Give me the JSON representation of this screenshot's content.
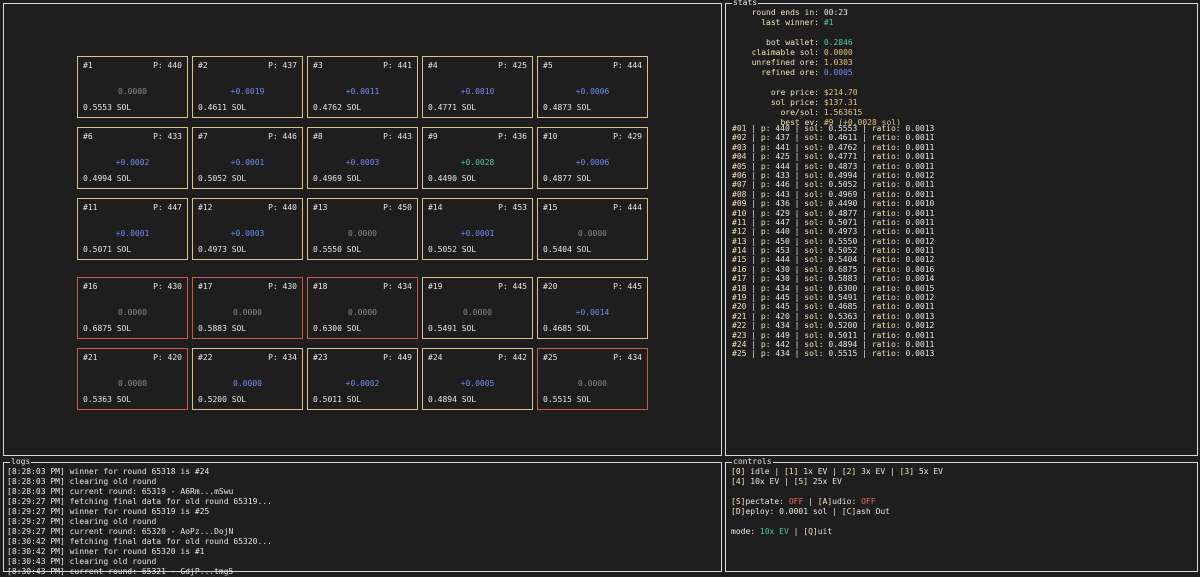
{
  "panels": {
    "stats_title": "stats",
    "logs_title": "logs",
    "controls_title": "controls"
  },
  "grid": [
    {
      "id": "#1",
      "players": "P: 440",
      "ev": "0.0000",
      "sol": "0.5553 SOL",
      "border": "gold",
      "ev_style": "zero"
    },
    {
      "id": "#2",
      "players": "P: 437",
      "ev": "+0.0019",
      "sol": "0.4611 SOL",
      "border": "gold",
      "ev_style": "pos"
    },
    {
      "id": "#3",
      "players": "P: 441",
      "ev": "+0.0011",
      "sol": "0.4762 SOL",
      "border": "gold",
      "ev_style": "pos"
    },
    {
      "id": "#4",
      "players": "P: 425",
      "ev": "+0.0010",
      "sol": "0.4771 SOL",
      "border": "gold",
      "ev_style": "pos"
    },
    {
      "id": "#5",
      "players": "P: 444",
      "ev": "+0.0006",
      "sol": "0.4873 SOL",
      "border": "gold",
      "ev_style": "pos"
    },
    {
      "id": "#6",
      "players": "P: 433",
      "ev": "+0.0002",
      "sol": "0.4994 SOL",
      "border": "gold",
      "ev_style": "pos"
    },
    {
      "id": "#7",
      "players": "P: 446",
      "ev": "+0.0001",
      "sol": "0.5052 SOL",
      "border": "gold",
      "ev_style": "pos"
    },
    {
      "id": "#8",
      "players": "P: 443",
      "ev": "+0.0003",
      "sol": "0.4969 SOL",
      "border": "gold",
      "ev_style": "pos"
    },
    {
      "id": "#9",
      "players": "P: 436",
      "ev": "+0.0028",
      "sol": "0.4490 SOL",
      "border": "gold",
      "ev_style": "best"
    },
    {
      "id": "#10",
      "players": "P: 429",
      "ev": "+0.0006",
      "sol": "0.4877 SOL",
      "border": "gold",
      "ev_style": "pos"
    },
    {
      "id": "#11",
      "players": "P: 447",
      "ev": "+0.0001",
      "sol": "0.5071 SOL",
      "border": "gold",
      "ev_style": "pos"
    },
    {
      "id": "#12",
      "players": "P: 440",
      "ev": "+0.0003",
      "sol": "0.4973 SOL",
      "border": "gold",
      "ev_style": "pos"
    },
    {
      "id": "#13",
      "players": "P: 450",
      "ev": "0.0000",
      "sol": "0.5550 SOL",
      "border": "gold",
      "ev_style": "zero"
    },
    {
      "id": "#14",
      "players": "P: 453",
      "ev": "+0.0001",
      "sol": "0.5052 SOL",
      "border": "gold",
      "ev_style": "pos"
    },
    {
      "id": "#15",
      "players": "P: 444",
      "ev": "0.0000",
      "sol": "0.5404 SOL",
      "border": "gold",
      "ev_style": "zero"
    },
    {
      "id": "#16",
      "players": "P: 430",
      "ev": "0.0000",
      "sol": "0.6875 SOL",
      "border": "red",
      "ev_style": "zero"
    },
    {
      "id": "#17",
      "players": "P: 430",
      "ev": "0.0000",
      "sol": "0.5883 SOL",
      "border": "red",
      "ev_style": "zero"
    },
    {
      "id": "#18",
      "players": "P: 434",
      "ev": "0.0000",
      "sol": "0.6300 SOL",
      "border": "red",
      "ev_style": "zero"
    },
    {
      "id": "#19",
      "players": "P: 445",
      "ev": "0.0000",
      "sol": "0.5491 SOL",
      "border": "gold",
      "ev_style": "zero"
    },
    {
      "id": "#20",
      "players": "P: 445",
      "ev": "+0.0014",
      "sol": "0.4685 SOL",
      "border": "gold",
      "ev_style": "pos"
    },
    {
      "id": "#21",
      "players": "P: 420",
      "ev": "0.0000",
      "sol": "0.5363 SOL",
      "border": "red",
      "ev_style": "zero"
    },
    {
      "id": "#22",
      "players": "P: 434",
      "ev": "0.0000",
      "sol": "0.5200 SOL",
      "border": "gold",
      "ev_style": "pos"
    },
    {
      "id": "#23",
      "players": "P: 449",
      "ev": "+0.0002",
      "sol": "0.5011 SOL",
      "border": "gold",
      "ev_style": "pos"
    },
    {
      "id": "#24",
      "players": "P: 442",
      "ev": "+0.0005",
      "sol": "0.4894 SOL",
      "border": "gold",
      "ev_style": "pos"
    },
    {
      "id": "#25",
      "players": "P: 434",
      "ev": "0.0000",
      "sol": "0.5515 SOL",
      "border": "red",
      "ev_style": "zero"
    }
  ],
  "stats": {
    "round_ends_label": "round ends in:",
    "round_ends_value": "00:23",
    "last_winner_label": "last winner:",
    "last_winner_value": "#1",
    "bot_wallet_label": "bot wallet:",
    "bot_wallet_value": "0.2846",
    "claimable_sol_label": "claimable sol:",
    "claimable_sol_value": "0.0000",
    "unrefined_ore_label": "unrefined ore:",
    "unrefined_ore_value": "1.0303",
    "refined_ore_label": "refined ore:",
    "refined_ore_value": "0.0005",
    "ore_price_label": "ore price:",
    "ore_price_value": "$214.70",
    "sol_price_label": "sol price:",
    "sol_price_value": "$137.31",
    "ore_sol_label": "ore/sol:",
    "ore_sol_value": "1.563615",
    "best_ev_label": "best ev:",
    "best_ev_value": "#9 (+0.0028 sol)"
  },
  "table": [
    {
      "id": "#01",
      "p": "440",
      "sol": "0.5553",
      "ratio": "0.0013"
    },
    {
      "id": "#02",
      "p": "437",
      "sol": "0.4611",
      "ratio": "0.0011"
    },
    {
      "id": "#03",
      "p": "441",
      "sol": "0.4762",
      "ratio": "0.0011"
    },
    {
      "id": "#04",
      "p": "425",
      "sol": "0.4771",
      "ratio": "0.0011"
    },
    {
      "id": "#05",
      "p": "444",
      "sol": "0.4873",
      "ratio": "0.0011"
    },
    {
      "id": "#06",
      "p": "433",
      "sol": "0.4994",
      "ratio": "0.0012"
    },
    {
      "id": "#07",
      "p": "446",
      "sol": "0.5052",
      "ratio": "0.0011"
    },
    {
      "id": "#08",
      "p": "443",
      "sol": "0.4969",
      "ratio": "0.0011"
    },
    {
      "id": "#09",
      "p": "436",
      "sol": "0.4490",
      "ratio": "0.0010"
    },
    {
      "id": "#10",
      "p": "429",
      "sol": "0.4877",
      "ratio": "0.0011"
    },
    {
      "id": "#11",
      "p": "447",
      "sol": "0.5071",
      "ratio": "0.0011"
    },
    {
      "id": "#12",
      "p": "440",
      "sol": "0.4973",
      "ratio": "0.0011"
    },
    {
      "id": "#13",
      "p": "450",
      "sol": "0.5550",
      "ratio": "0.0012"
    },
    {
      "id": "#14",
      "p": "453",
      "sol": "0.5052",
      "ratio": "0.0011"
    },
    {
      "id": "#15",
      "p": "444",
      "sol": "0.5404",
      "ratio": "0.0012"
    },
    {
      "id": "#16",
      "p": "430",
      "sol": "0.6875",
      "ratio": "0.0016"
    },
    {
      "id": "#17",
      "p": "430",
      "sol": "0.5883",
      "ratio": "0.0014"
    },
    {
      "id": "#18",
      "p": "434",
      "sol": "0.6300",
      "ratio": "0.0015"
    },
    {
      "id": "#19",
      "p": "445",
      "sol": "0.5491",
      "ratio": "0.0012"
    },
    {
      "id": "#20",
      "p": "445",
      "sol": "0.4685",
      "ratio": "0.0011"
    },
    {
      "id": "#21",
      "p": "420",
      "sol": "0.5363",
      "ratio": "0.0013"
    },
    {
      "id": "#22",
      "p": "434",
      "sol": "0.5200",
      "ratio": "0.0012"
    },
    {
      "id": "#23",
      "p": "449",
      "sol": "0.5011",
      "ratio": "0.0011"
    },
    {
      "id": "#24",
      "p": "442",
      "sol": "0.4894",
      "ratio": "0.0011"
    },
    {
      "id": "#25",
      "p": "434",
      "sol": "0.5515",
      "ratio": "0.0013"
    }
  ],
  "table_labels": {
    "sep": " | ",
    "p": "p: ",
    "sol": "sol: ",
    "ratio": "ratio: "
  },
  "logs": [
    "[8:28:03 PM] winner for round 65318 is #24",
    "[8:28:03 PM] clearing old round",
    "[8:28:03 PM] current round: 65319 - A6Rm...mSwu",
    "[8:29:27 PM] fetching final data for old round 65319...",
    "[8:29:27 PM] winner for round 65319 is #25",
    "[8:29:27 PM] clearing old round",
    "[8:29:27 PM] current round: 65320 - AoPz...DojN",
    "[8:30:42 PM] fetching final data for old round 65320...",
    "[8:30:42 PM] winner for round 65320 is #1",
    "[8:30:43 PM] clearing old round",
    "[8:30:43 PM] current round: 65321 - GdjP...tmg5"
  ],
  "controls": {
    "line1": {
      "k0": "[0]",
      "t0": " idle | ",
      "k1": "[1]",
      "t1": " 1x EV | ",
      "k2": "[2]",
      "t2": " 3x EV | ",
      "k3": "[3]",
      "t3": " 5x EV"
    },
    "line2": {
      "k4": "[4]",
      "t4": " 10x EV | ",
      "k5": "[5]",
      "t5": " 25x EV"
    },
    "spectate_key": "[S]",
    "spectate_text": "pectate: ",
    "spectate_value": "OFF",
    "sep": " | ",
    "audio_key": "[A]",
    "audio_text": "udio: ",
    "audio_value": "OFF",
    "deploy_key": "[D]",
    "deploy_text": "eploy: 0.0001 sol | ",
    "cashout_key": "[C]",
    "cashout_text": "ash Out",
    "mode_label": "mode: ",
    "mode_value": "10x EV",
    "mode_sep": " | ",
    "quit_key": "[Q]",
    "quit_text": "uit"
  },
  "colors": {
    "gold_border": "#d9c38c",
    "red_border": "#c95a4f",
    "ev_blue": "#6f8cf5",
    "ev_green": "#4ec9a0",
    "ev_grey": "#8a8a8a",
    "label_cream": "#f0e2b6",
    "off_red": "#f06a5a"
  }
}
